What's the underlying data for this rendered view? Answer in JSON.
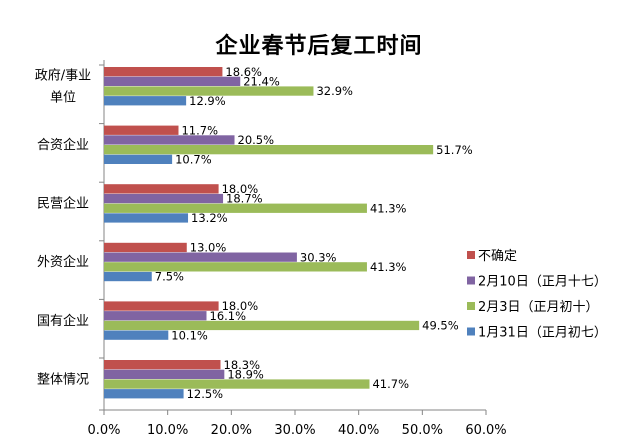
{
  "chart_data": {
    "type": "bar",
    "orientation": "horizontal",
    "title": "企业春节后复工时间",
    "categories": [
      "政府/事业单位",
      "合资企业",
      "民营企业",
      "外资企业",
      "国有企业",
      "整体情况"
    ],
    "category_display": [
      [
        "政府/事业",
        "单位"
      ],
      [
        "合资企业"
      ],
      [
        "民营企业"
      ],
      [
        "外资企业"
      ],
      [
        "国有企业"
      ],
      [
        "整体情况"
      ]
    ],
    "series": [
      {
        "name": "不确定",
        "color": "#c0504d",
        "values": [
          18.6,
          11.7,
          18.0,
          13.0,
          18.0,
          18.3
        ]
      },
      {
        "name": "2月10日（正月十七）",
        "color": "#8064a2",
        "values": [
          21.4,
          20.5,
          18.7,
          30.3,
          16.1,
          18.9
        ]
      },
      {
        "name": "2月3日（正月初十）",
        "color": "#9bbb59",
        "values": [
          32.9,
          51.7,
          41.3,
          41.3,
          49.5,
          41.7
        ]
      },
      {
        "name": "1月31日（正月初七）",
        "color": "#4f81bd",
        "values": [
          12.9,
          10.7,
          13.2,
          7.5,
          10.1,
          12.5
        ]
      }
    ],
    "xlim": [
      0,
      60
    ],
    "xticks": [
      "0.0%",
      "10.0%",
      "20.0%",
      "30.0%",
      "40.0%",
      "50.0%",
      "60.0%"
    ],
    "value_suffix": "%",
    "grid": false,
    "legend_position": "right"
  }
}
